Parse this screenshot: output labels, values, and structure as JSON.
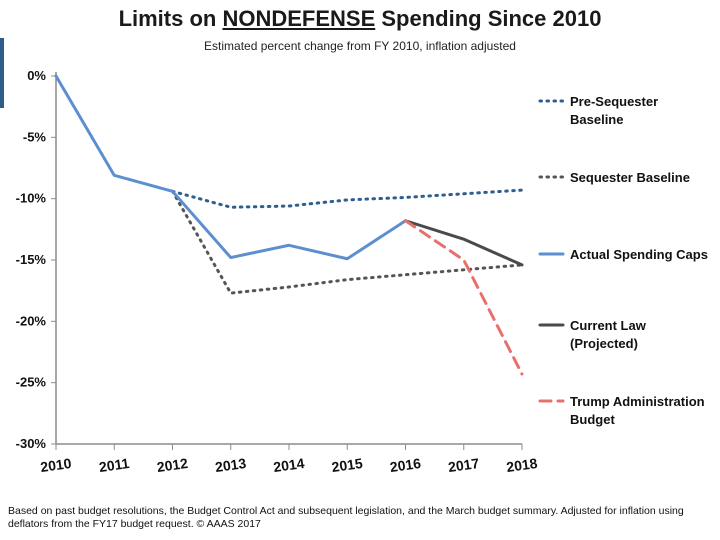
{
  "chart_data": {
    "type": "line",
    "title_prefix": "Limits on ",
    "title_emph": "NONDEFENSE",
    "title_suffix": " Spending Since 2010",
    "subtitle": "Estimated percent change from FY 2010, inflation adjusted",
    "x": [
      "2010",
      "2011",
      "2012",
      "2013",
      "2014",
      "2015",
      "2016",
      "2017",
      "2018"
    ],
    "ylim": [
      -30,
      0
    ],
    "yticks": [
      0,
      -5,
      -10,
      -15,
      -20,
      -25,
      -30
    ],
    "ytick_labels": [
      "0%",
      "-5%",
      "-10%",
      "-15%",
      "-20%",
      "-25%",
      "-30%"
    ],
    "grid": false,
    "legend_position": "right",
    "series": [
      {
        "name": "Pre-Sequester Baseline",
        "legend_lines": [
          "Pre-Sequester",
          "Baseline"
        ],
        "color": "#2e5f8f",
        "style": "dotted",
        "x": [
          "2012",
          "2013",
          "2014",
          "2015",
          "2016",
          "2017",
          "2018"
        ],
        "values": [
          -9.4,
          -10.7,
          -10.6,
          -10.1,
          -9.9,
          -9.6,
          -9.3
        ]
      },
      {
        "name": "Sequester Baseline",
        "legend_lines": [
          "Sequester Baseline"
        ],
        "color": "#555555",
        "style": "dotted",
        "x": [
          "2012",
          "2013",
          "2014",
          "2015",
          "2016",
          "2017",
          "2018"
        ],
        "values": [
          -9.4,
          -17.7,
          -17.2,
          -16.6,
          -16.2,
          -15.8,
          -15.4
        ]
      },
      {
        "name": "Actual Spending Caps",
        "legend_lines": [
          "Actual Spending Caps"
        ],
        "color": "#5b8fd0",
        "style": "solid",
        "x": [
          "2010",
          "2011",
          "2012",
          "2013",
          "2014",
          "2015",
          "2016"
        ],
        "values": [
          0,
          -8.1,
          -9.4,
          -14.8,
          -13.8,
          -14.9,
          -11.8
        ]
      },
      {
        "name": "Current Law (Projected)",
        "legend_lines": [
          "Current Law",
          "(Projected)"
        ],
        "color": "#4a4a4a",
        "style": "solid",
        "x": [
          "2016",
          "2017",
          "2018"
        ],
        "values": [
          -11.8,
          -13.3,
          -15.4
        ]
      },
      {
        "name": "Trump Administration Budget",
        "legend_lines": [
          "Trump Administration",
          "Budget"
        ],
        "color": "#e8706c",
        "style": "dashed",
        "x": [
          "2016",
          "2017",
          "2018"
        ],
        "values": [
          -11.8,
          -15.0,
          -24.3
        ]
      }
    ]
  },
  "footnote": "Based on past budget resolutions, the Budget Control Act and subsequent legislation, and the March budget summary.  Adjusted for inflation using deflators from the FY17 budget request. © AAAS 2017"
}
